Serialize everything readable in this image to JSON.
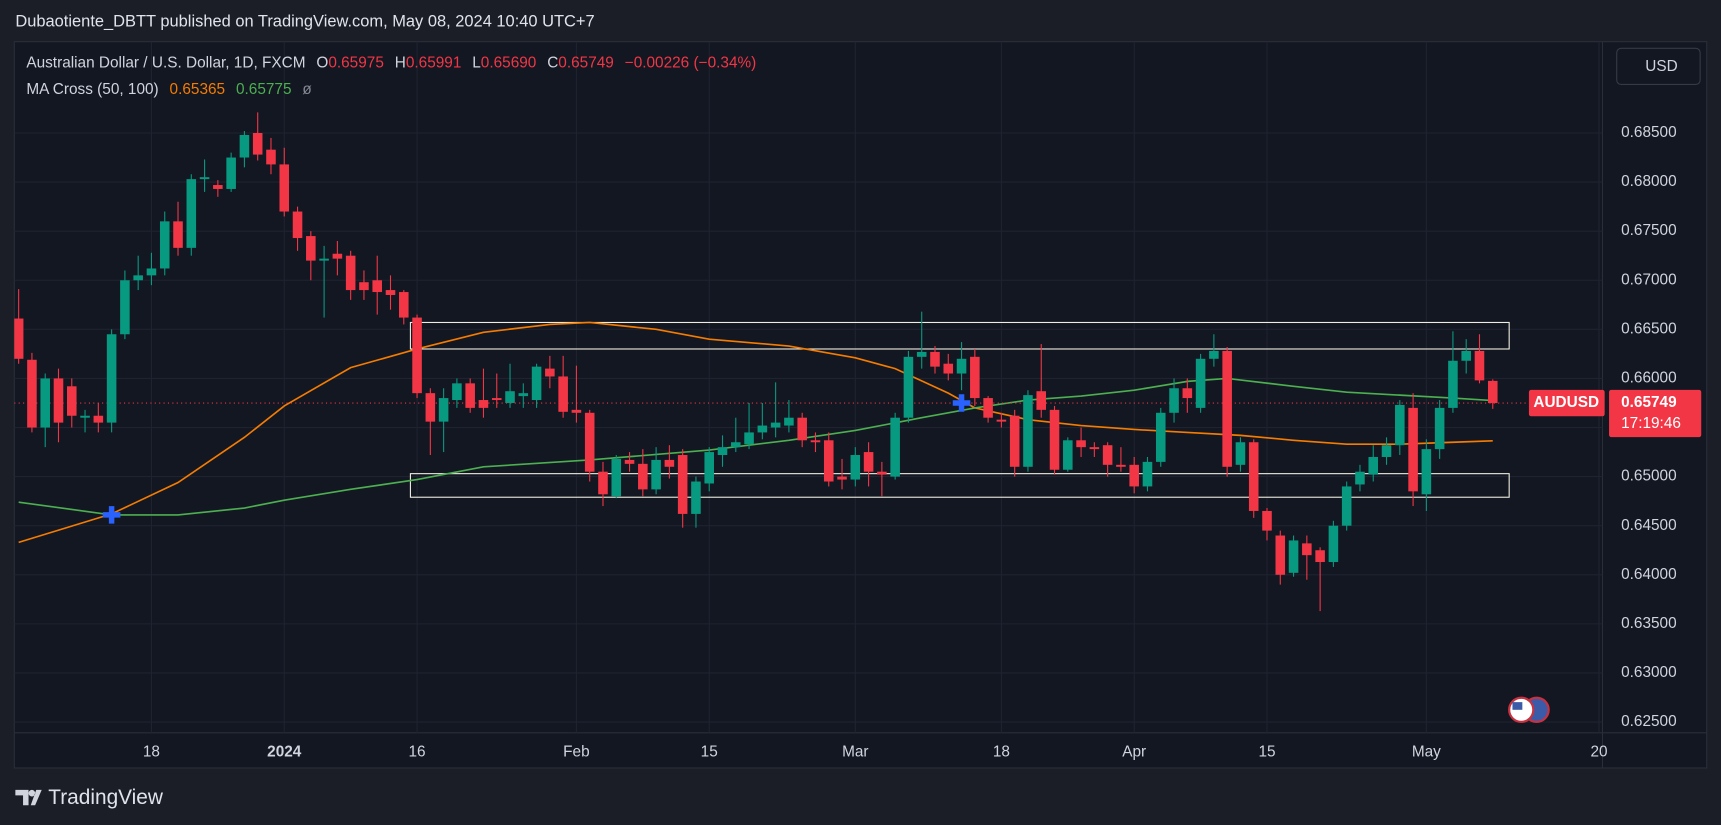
{
  "header": "Dubaotiente_DBTT published on TradingView.com, May 08, 2024 10:40 UTC+7",
  "footer": "TradingView",
  "currency": "USD",
  "chart_data": {
    "type": "candlestick",
    "symbol_title": "Australian Dollar / U.S. Dollar, 1D, FXCM",
    "ohlc_legend": [
      {
        "key": "O",
        "text": "0.65975"
      },
      {
        "key": "H",
        "text": "0.65991"
      },
      {
        "key": "L",
        "text": "0.65690"
      },
      {
        "key": "C",
        "text": "0.65749"
      }
    ],
    "change": "−0.00226 (−0.34%)",
    "indicator": {
      "name": "MA Cross (50, 100)",
      "values": [
        "0.65365",
        "0.65775"
      ],
      "extra": "ø"
    },
    "up_color": "#089981",
    "down_color": "#f23645",
    "open": [
      0.6661,
      0.6619,
      0.655,
      0.66,
      0.6592,
      0.656,
      0.6562,
      0.6555,
      0.6645,
      0.67,
      0.6705,
      0.6712,
      0.676,
      0.6733,
      0.6803,
      0.6797,
      0.6793,
      0.6825,
      0.685,
      0.6833,
      0.6818,
      0.677,
      0.6745,
      0.672,
      0.6727,
      0.6725,
      0.6698,
      0.67,
      0.669,
      0.6688,
      0.6662,
      0.6585,
      0.6556,
      0.6578,
      0.6595,
      0.6578,
      0.658,
      0.6575,
      0.6582,
      0.6578,
      0.661,
      0.6602,
      0.6568,
      0.6565,
      0.6505,
      0.648,
      0.6517,
      0.6513,
      0.6487,
      0.6517,
      0.6522,
      0.6462,
      0.6493,
      0.6522,
      0.653,
      0.6533,
      0.6545,
      0.655,
      0.6552,
      0.656,
      0.6537,
      0.6537,
      0.65,
      0.6497,
      0.6525,
      0.6505,
      0.65,
      0.656,
      0.6622,
      0.6627,
      0.6615,
      0.6605,
      0.6622,
      0.658,
      0.6558,
      0.6562,
      0.651,
      0.6587,
      0.6568,
      0.6507,
      0.6537,
      0.653,
      0.6532,
      0.6512,
      0.6512,
      0.649,
      0.6515,
      0.6565,
      0.659,
      0.657,
      0.662,
      0.6628,
      0.6512,
      0.6535,
      0.6465,
      0.644,
      0.6402,
      0.6432,
      0.6425,
      0.6413,
      0.645,
      0.6492,
      0.6502,
      0.652,
      0.6532,
      0.657,
      0.6482,
      0.6528,
      0.657,
      0.6618,
      0.6628,
      0.65975
    ],
    "high": [
      0.6691,
      0.6626,
      0.6605,
      0.661,
      0.66,
      0.6568,
      0.6575,
      0.665,
      0.671,
      0.6725,
      0.6728,
      0.677,
      0.678,
      0.6808,
      0.6823,
      0.6802,
      0.683,
      0.6852,
      0.6871,
      0.6845,
      0.6835,
      0.6775,
      0.675,
      0.6735,
      0.674,
      0.673,
      0.671,
      0.6725,
      0.6705,
      0.669,
      0.6665,
      0.659,
      0.659,
      0.66,
      0.66,
      0.661,
      0.6605,
      0.6615,
      0.6595,
      0.6615,
      0.6623,
      0.6623,
      0.6613,
      0.6568,
      0.6515,
      0.6522,
      0.6525,
      0.6528,
      0.653,
      0.6532,
      0.6528,
      0.65,
      0.653,
      0.6542,
      0.656,
      0.6575,
      0.6575,
      0.6596,
      0.6578,
      0.6565,
      0.6545,
      0.6545,
      0.6518,
      0.653,
      0.6535,
      0.6515,
      0.6565,
      0.6628,
      0.6668,
      0.6633,
      0.6625,
      0.6637,
      0.663,
      0.6582,
      0.6565,
      0.6568,
      0.6588,
      0.6635,
      0.6572,
      0.654,
      0.655,
      0.6535,
      0.6535,
      0.653,
      0.652,
      0.652,
      0.657,
      0.66,
      0.66,
      0.6625,
      0.6645,
      0.6632,
      0.654,
      0.6538,
      0.6468,
      0.6445,
      0.644,
      0.644,
      0.6428,
      0.6455,
      0.6495,
      0.6512,
      0.6532,
      0.654,
      0.6578,
      0.6585,
      0.6538,
      0.6578,
      0.6648,
      0.664,
      0.6645,
      0.65991
    ],
    "low": [
      0.6615,
      0.6545,
      0.653,
      0.6535,
      0.655,
      0.6545,
      0.6545,
      0.6545,
      0.664,
      0.669,
      0.6695,
      0.6705,
      0.6725,
      0.6725,
      0.679,
      0.6785,
      0.679,
      0.6815,
      0.6822,
      0.6808,
      0.6765,
      0.673,
      0.67,
      0.6662,
      0.6705,
      0.668,
      0.668,
      0.6665,
      0.667,
      0.6655,
      0.658,
      0.6522,
      0.6525,
      0.657,
      0.6565,
      0.656,
      0.657,
      0.657,
      0.657,
      0.657,
      0.659,
      0.656,
      0.6555,
      0.6495,
      0.647,
      0.6478,
      0.6505,
      0.648,
      0.6482,
      0.6498,
      0.6448,
      0.6448,
      0.6485,
      0.651,
      0.6525,
      0.6528,
      0.6538,
      0.654,
      0.6545,
      0.653,
      0.6525,
      0.649,
      0.6487,
      0.649,
      0.649,
      0.648,
      0.6497,
      0.6555,
      0.661,
      0.6605,
      0.6598,
      0.6588,
      0.6572,
      0.6555,
      0.655,
      0.65,
      0.6505,
      0.656,
      0.6502,
      0.6505,
      0.652,
      0.652,
      0.65,
      0.6505,
      0.6483,
      0.6485,
      0.651,
      0.6555,
      0.6565,
      0.6565,
      0.6612,
      0.65,
      0.6505,
      0.6458,
      0.6435,
      0.639,
      0.6398,
      0.6395,
      0.6363,
      0.6408,
      0.6445,
      0.6485,
      0.6495,
      0.6512,
      0.6522,
      0.647,
      0.6465,
      0.6518,
      0.6565,
      0.6605,
      0.6595,
      0.6569
    ],
    "close": [
      0.662,
      0.655,
      0.66,
      0.6555,
      0.6562,
      0.6562,
      0.6555,
      0.6645,
      0.67,
      0.6705,
      0.6712,
      0.676,
      0.6733,
      0.6803,
      0.6805,
      0.6793,
      0.6825,
      0.6848,
      0.6828,
      0.6818,
      0.677,
      0.6743,
      0.672,
      0.6722,
      0.6722,
      0.669,
      0.669,
      0.6688,
      0.6685,
      0.6662,
      0.6585,
      0.6556,
      0.658,
      0.6595,
      0.657,
      0.657,
      0.6578,
      0.6587,
      0.6585,
      0.6612,
      0.6602,
      0.6566,
      0.6565,
      0.6505,
      0.6482,
      0.6518,
      0.6513,
      0.6487,
      0.6517,
      0.651,
      0.6462,
      0.6495,
      0.6525,
      0.653,
      0.6535,
      0.6545,
      0.6552,
      0.6555,
      0.656,
      0.6537,
      0.6535,
      0.6495,
      0.6497,
      0.6522,
      0.6505,
      0.6502,
      0.656,
      0.6622,
      0.6627,
      0.6612,
      0.6605,
      0.662,
      0.658,
      0.656,
      0.6556,
      0.651,
      0.6583,
      0.6568,
      0.6507,
      0.6537,
      0.653,
      0.6528,
      0.6512,
      0.651,
      0.649,
      0.6515,
      0.6565,
      0.659,
      0.658,
      0.662,
      0.6628,
      0.651,
      0.6535,
      0.6465,
      0.6445,
      0.64,
      0.6435,
      0.642,
      0.6413,
      0.645,
      0.649,
      0.6505,
      0.652,
      0.6532,
      0.6573,
      0.6485,
      0.6528,
      0.657,
      0.6618,
      0.6628,
      0.6598,
      0.65749
    ],
    "ma_lines": [
      {
        "color": "#f57c00",
        "x": [
          0,
          7,
          12,
          17,
          20,
          25,
          30,
          35,
          40,
          43,
          48,
          52,
          58,
          63,
          66,
          70,
          72,
          76,
          80,
          84,
          88,
          92,
          96,
          100,
          104,
          108,
          111
        ],
        "values": [
          0.6433,
          0.6462,
          0.6494,
          0.654,
          0.6572,
          0.6611,
          0.663,
          0.6647,
          0.6655,
          0.6657,
          0.665,
          0.664,
          0.6633,
          0.6621,
          0.661,
          0.6585,
          0.657,
          0.6558,
          0.6552,
          0.6548,
          0.6545,
          0.6542,
          0.6537,
          0.6533,
          0.6533,
          0.6535,
          0.65365
        ]
      },
      {
        "color": "#4caf50",
        "x": [
          0,
          7,
          12,
          17,
          20,
          25,
          30,
          35,
          43,
          52,
          58,
          63,
          68,
          72,
          76,
          80,
          84,
          88,
          91,
          96,
          100,
          104,
          108,
          111
        ],
        "values": [
          0.6474,
          0.6461,
          0.6461,
          0.6468,
          0.6476,
          0.6487,
          0.6497,
          0.651,
          0.6517,
          0.6527,
          0.6537,
          0.6547,
          0.656,
          0.657,
          0.6578,
          0.6582,
          0.6588,
          0.6597,
          0.66,
          0.6592,
          0.6586,
          0.6583,
          0.658,
          0.65775
        ]
      }
    ],
    "zones": [
      {
        "from": 30,
        "top": 0.6657,
        "bottom": 0.663
      },
      {
        "from": 30,
        "top": 0.6503,
        "bottom": 0.6479
      }
    ],
    "markers": [
      {
        "x": 7,
        "value": 0.6461
      },
      {
        "x": 71,
        "value": 0.6575
      }
    ],
    "marker_color": "#2962ff",
    "last_price": {
      "symbol": "AUDUSD",
      "value": 0.65749,
      "countdown": "17:19:46"
    },
    "xlim": [
      -0.33,
      119.26
    ],
    "ylim": [
      0.6239,
      0.6943
    ],
    "yticks": [
      {
        "value": 0.625,
        "label": "0.62500"
      },
      {
        "value": 0.63,
        "label": "0.63000"
      },
      {
        "value": 0.635,
        "label": "0.63500"
      },
      {
        "value": 0.64,
        "label": "0.64000"
      },
      {
        "value": 0.645,
        "label": "0.64500"
      },
      {
        "value": 0.65,
        "label": "0.65000"
      },
      {
        "value": 0.655,
        "label": "0.65500"
      },
      {
        "value": 0.66,
        "label": "0.66000"
      },
      {
        "value": 0.665,
        "label": "0.66500"
      },
      {
        "value": 0.67,
        "label": "0.67000"
      },
      {
        "value": 0.675,
        "label": "0.67500"
      },
      {
        "value": 0.68,
        "label": "0.68000"
      },
      {
        "value": 0.685,
        "label": "0.68500"
      }
    ],
    "xticks": [
      {
        "value": 10,
        "label": "18"
      },
      {
        "value": 20,
        "label": "2024"
      },
      {
        "value": 30,
        "label": "16"
      },
      {
        "value": 42,
        "label": "Feb"
      },
      {
        "value": 52,
        "label": "15"
      },
      {
        "value": 63,
        "label": "Mar"
      },
      {
        "value": 74,
        "label": "18"
      },
      {
        "value": 84,
        "label": "Apr"
      },
      {
        "value": 94,
        "label": "15"
      },
      {
        "value": 106,
        "label": "May"
      },
      {
        "value": 119,
        "label": "20"
      }
    ],
    "grid": true
  }
}
